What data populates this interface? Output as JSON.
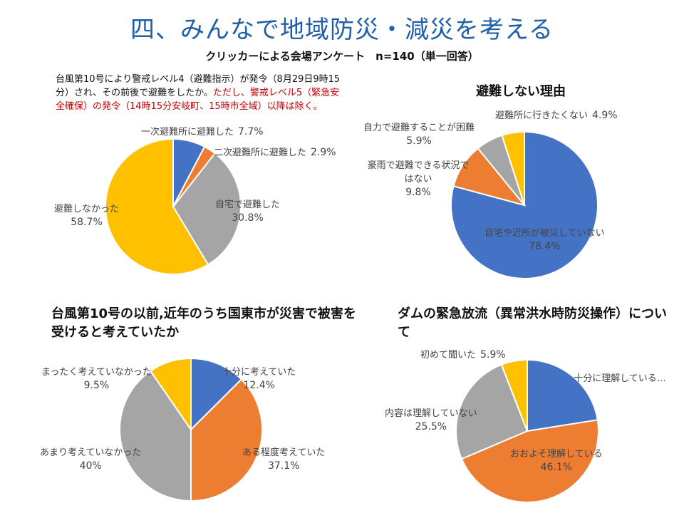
{
  "title": "四、みんなで地域防災・減災を考える",
  "subtitle": "クリッカーによる会場アンケート　n=140（単一回答）",
  "question1": {
    "text": "台風第10号により警戒レベル4（避難指示）が発令（8月29日9時15分）され、その前後で避難をしたか。",
    "note": "ただし、警戒レベル5（緊急安全確保）の発令（14時15分安岐町、15時市全域）以降は除く。"
  },
  "colors": {
    "blue": "#4472c4",
    "orange": "#ed7d31",
    "gray": "#a5a5a5",
    "yellow": "#ffc000"
  },
  "chart_data": [
    {
      "type": "pie",
      "title": "",
      "labels": [
        "一次避難所に避難した",
        "二次避難所に避難した",
        "自宅で避難した",
        "避難しなかった"
      ],
      "values": [
        7.7,
        2.9,
        30.8,
        58.7
      ],
      "value_labels": [
        "7.7%",
        "2.9%",
        "30.8%",
        "58.7%"
      ],
      "colors": [
        "#4472c4",
        "#ed7d31",
        "#a5a5a5",
        "#ffc000"
      ]
    },
    {
      "type": "pie",
      "title": "避難しない理由",
      "labels": [
        "自宅や近所が被災していない",
        "豪雨で避難できる状況ではない",
        "自力で避難することが困難",
        "避難所に行きたくない"
      ],
      "values": [
        78.4,
        9.8,
        5.9,
        4.9
      ],
      "value_labels": [
        "78.4%",
        "9.8%",
        "5.9%",
        "4.9%"
      ],
      "colors": [
        "#4472c4",
        "#ed7d31",
        "#a5a5a5",
        "#ffc000"
      ]
    },
    {
      "type": "pie",
      "title": "台風第10号の以前,近年のうち国東市が災害で被害を受けると考えていたか",
      "labels": [
        "十分に考えていた",
        "ある程度考えていた",
        "あまり考えていなかった",
        "まったく考えていなかった"
      ],
      "values": [
        12.4,
        37.1,
        40,
        9.5
      ],
      "value_labels": [
        "12.4%",
        "37.1%",
        "40%",
        "9.5%"
      ],
      "colors": [
        "#4472c4",
        "#ed7d31",
        "#a5a5a5",
        "#ffc000"
      ]
    },
    {
      "type": "pie",
      "title": "ダムの緊急放流（異常洪水時防災操作）について",
      "labels": [
        "十分に理解している…",
        "おおよそ理解している",
        "内容は理解していない",
        "初めて聞いた"
      ],
      "values": [
        22.5,
        46.1,
        25.5,
        5.9
      ],
      "value_labels": [
        "",
        "46.1%",
        "25.5%",
        "5.9%"
      ],
      "colors": [
        "#4472c4",
        "#ed7d31",
        "#a5a5a5",
        "#ffc000"
      ]
    }
  ]
}
